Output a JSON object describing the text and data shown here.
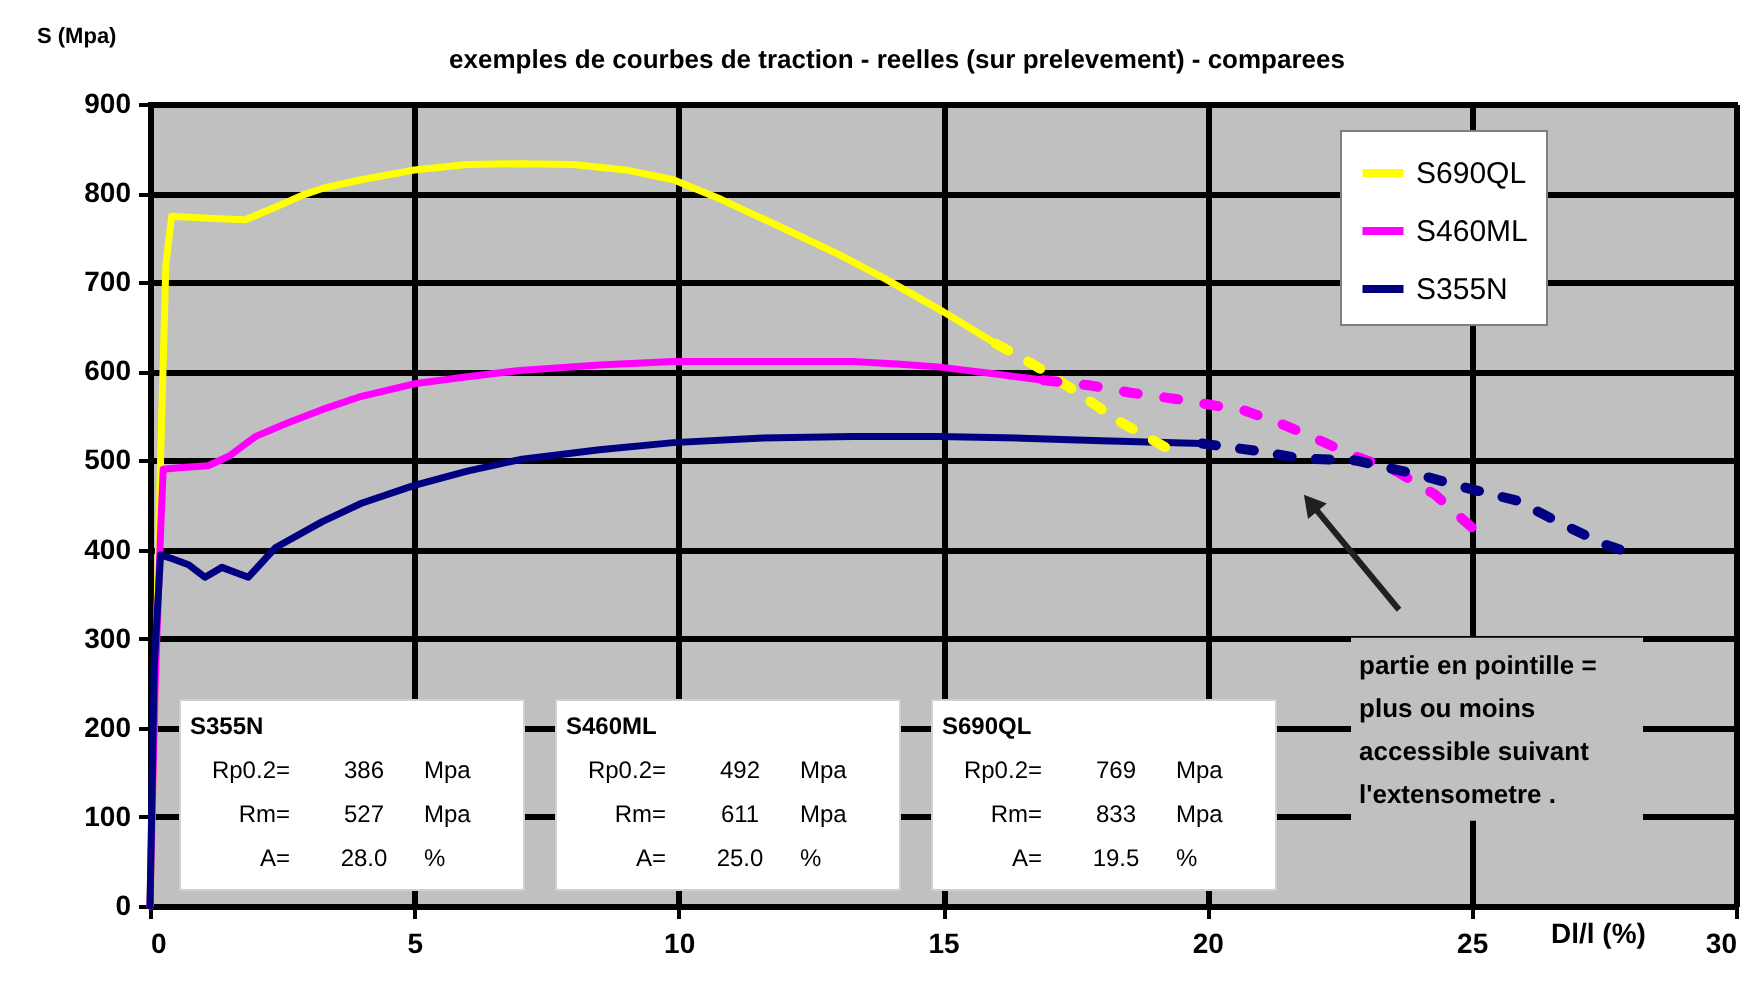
{
  "chart_data": {
    "type": "line",
    "title": "exemples de courbes de traction - reelles (sur prelevement) - comparees",
    "xlabel": "Dl/l (%)",
    "ylabel": "S (Mpa)",
    "xlim": [
      0,
      30
    ],
    "xticks": [
      0,
      5,
      10,
      15,
      20,
      25,
      30
    ],
    "ylim": [
      0,
      900
    ],
    "yticks": [
      0,
      100,
      200,
      300,
      400,
      500,
      600,
      700,
      800,
      900
    ],
    "grid": true,
    "legend": "top right",
    "line_style": "solid",
    "series": [
      {
        "name": "S690QL",
        "color": "#ffff00",
        "x": [
          0,
          0.1,
          0.2,
          0.3,
          0.41,
          1.0,
          1.8,
          2.4,
          2.9,
          3.3,
          4.0,
          5.0,
          6.0,
          7.0,
          8.0,
          9.0,
          9.9,
          10.8,
          12.0,
          13.0,
          13.9,
          15.0,
          16.0
        ],
        "values": [
          0,
          250,
          500,
          720,
          774,
          772,
          770,
          785,
          798,
          806,
          815,
          826,
          832,
          833,
          832,
          826,
          815,
          793,
          760,
          732,
          704,
          667,
          631
        ]
      },
      {
        "name": "S460ML",
        "color": "#ff00ff",
        "x": [
          0,
          0.1,
          0.2,
          0.25,
          0.6,
          1.1,
          1.5,
          2.0,
          2.6,
          3.25,
          4.0,
          5.0,
          6.0,
          7.0,
          8.5,
          9.9,
          11.5,
          13.3,
          14.2,
          14.9,
          16.0,
          16.9
        ],
        "values": [
          0,
          250,
          420,
          490,
          492,
          494,
          505,
          527,
          542,
          557,
          572,
          586,
          594,
          601,
          607,
          611,
          611,
          611,
          608,
          605,
          597,
          590
        ]
      },
      {
        "name": "S355N",
        "color": "#000080",
        "x": [
          0,
          0.08,
          0.2,
          0.41,
          0.73,
          1.04,
          1.36,
          1.86,
          2.37,
          3.25,
          4.0,
          5.0,
          6.0,
          7.0,
          8.5,
          9.9,
          11.5,
          13.3,
          14.9,
          16.5,
          18.0,
          19.9
        ],
        "values": [
          0,
          269,
          394,
          390,
          383,
          369,
          380,
          369,
          402,
          431,
          452,
          472,
          488,
          501,
          512,
          520,
          525,
          527,
          527,
          525,
          522,
          519
        ]
      },
      {
        "color": "#ffff00",
        "line_style": "dotted",
        "x": [
          16.0,
          16.7,
          17.5,
          18.3,
          19.2
        ],
        "values": [
          631,
          608,
          578,
          545,
          515
        ]
      },
      {
        "color": "#ff00ff",
        "line_style": "dotted",
        "x": [
          16.9,
          17.8,
          18.55,
          19.4,
          20.0,
          20.7,
          21.4,
          22.0,
          22.7,
          23.6,
          24.3,
          24.85,
          25.0
        ],
        "values": [
          590,
          584,
          576,
          569,
          563,
          556,
          541,
          526,
          507,
          487,
          462,
          433,
          425
        ]
      },
      {
        "color": "#000080",
        "line_style": "dotted",
        "x": [
          19.9,
          20.9,
          21.8,
          22.8,
          24.0,
          24.85,
          25.85,
          26.7,
          27.5,
          27.8
        ],
        "values": [
          519,
          511,
          502,
          500,
          484,
          470,
          455,
          429,
          406,
          400
        ]
      }
    ],
    "annotations": [
      "partie en pointille = plus ou moins accessible suivant l'extensometre .",
      "S355N",
      "Rp0.2= 386 Mpa",
      "Rm= 527 Mpa",
      "A= 28.0 %",
      "S460ML",
      "Rp0.2= 492 Mpa",
      "Rm= 611 Mpa",
      "A= 25.0 %",
      "S690QL",
      "Rp0.2= 769 Mpa",
      "Rm= 833 Mpa",
      "A= 19.5 %"
    ]
  }
}
